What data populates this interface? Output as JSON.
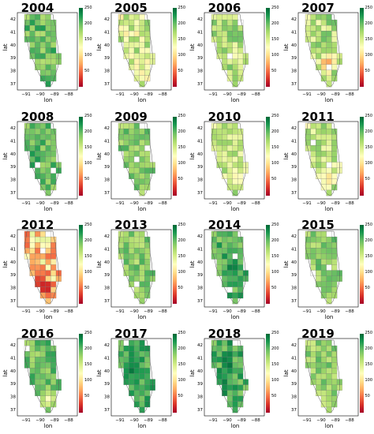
{
  "panels": [
    {
      "year": "2004",
      "mean": 195,
      "var": 28,
      "hot": []
    },
    {
      "year": "2005",
      "mean": 150,
      "var": 40,
      "hot": [
        {
          "r": 0.1,
          "c": 0.85,
          "v": 90
        }
      ]
    },
    {
      "year": "2006",
      "mean": 170,
      "var": 30,
      "hot": [
        {
          "r": 0.55,
          "c": 0.5,
          "v": 120
        }
      ]
    },
    {
      "year": "2007",
      "mean": 165,
      "var": 35,
      "hot": [
        {
          "r": 0.7,
          "c": 0.45,
          "v": 40
        },
        {
          "r": 0.65,
          "c": 0.55,
          "v": 70
        }
      ]
    },
    {
      "year": "2008",
      "mean": 200,
      "var": 25,
      "hot": []
    },
    {
      "year": "2009",
      "mean": 185,
      "var": 25,
      "hot": []
    },
    {
      "year": "2010",
      "mean": 160,
      "var": 30,
      "hot": [
        {
          "r": 0.75,
          "c": 0.55,
          "v": 110
        }
      ]
    },
    {
      "year": "2011",
      "mean": 155,
      "var": 35,
      "hot": [
        {
          "r": 0.75,
          "c": 0.5,
          "v": 100
        }
      ]
    },
    {
      "year": "2012",
      "mean": 95,
      "var": 50,
      "hot": [
        {
          "r": 0.75,
          "c": 0.4,
          "v": 10
        },
        {
          "r": 0.82,
          "c": 0.5,
          "v": 15
        },
        {
          "r": 0.7,
          "c": 0.3,
          "v": 25
        },
        {
          "r": 0.45,
          "c": 0.2,
          "v": 60
        }
      ]
    },
    {
      "year": "2013",
      "mean": 185,
      "var": 25,
      "hot": []
    },
    {
      "year": "2014",
      "mean": 205,
      "var": 25,
      "hot": [
        {
          "r": 0.5,
          "c": 0.45,
          "v": 245
        }
      ]
    },
    {
      "year": "2015",
      "mean": 185,
      "var": 25,
      "hot": [
        {
          "r": 0.25,
          "c": 0.9,
          "v": 100
        }
      ]
    },
    {
      "year": "2016",
      "mean": 195,
      "var": 25,
      "hot": [
        {
          "r": 0.82,
          "c": 0.5,
          "v": 120
        }
      ]
    },
    {
      "year": "2017",
      "mean": 210,
      "var": 22,
      "hot": [
        {
          "r": 0.4,
          "c": 0.3,
          "v": 250
        }
      ]
    },
    {
      "year": "2018",
      "mean": 210,
      "var": 28,
      "hot": [
        {
          "r": 0.35,
          "c": 0.35,
          "v": 250
        }
      ]
    },
    {
      "year": "2019",
      "mean": 180,
      "var": 25,
      "hot": []
    }
  ],
  "axes": {
    "xlabel": "lon",
    "ylabel": "lat",
    "xticks": [
      "−91",
      "−90",
      "−89",
      "−88"
    ],
    "yticks": [
      "42",
      "41",
      "40",
      "39",
      "38",
      "37"
    ]
  },
  "colorbar": {
    "ticks": [
      "250",
      "200",
      "150",
      "100",
      "50"
    ],
    "min": 0,
    "max": 250,
    "colors": [
      "#a50026",
      "#d73027",
      "#f46d43",
      "#fdae61",
      "#fee08b",
      "#ffffbf",
      "#d9ef8b",
      "#a6d96a",
      "#66bd63",
      "#1a9850",
      "#006837"
    ]
  }
}
